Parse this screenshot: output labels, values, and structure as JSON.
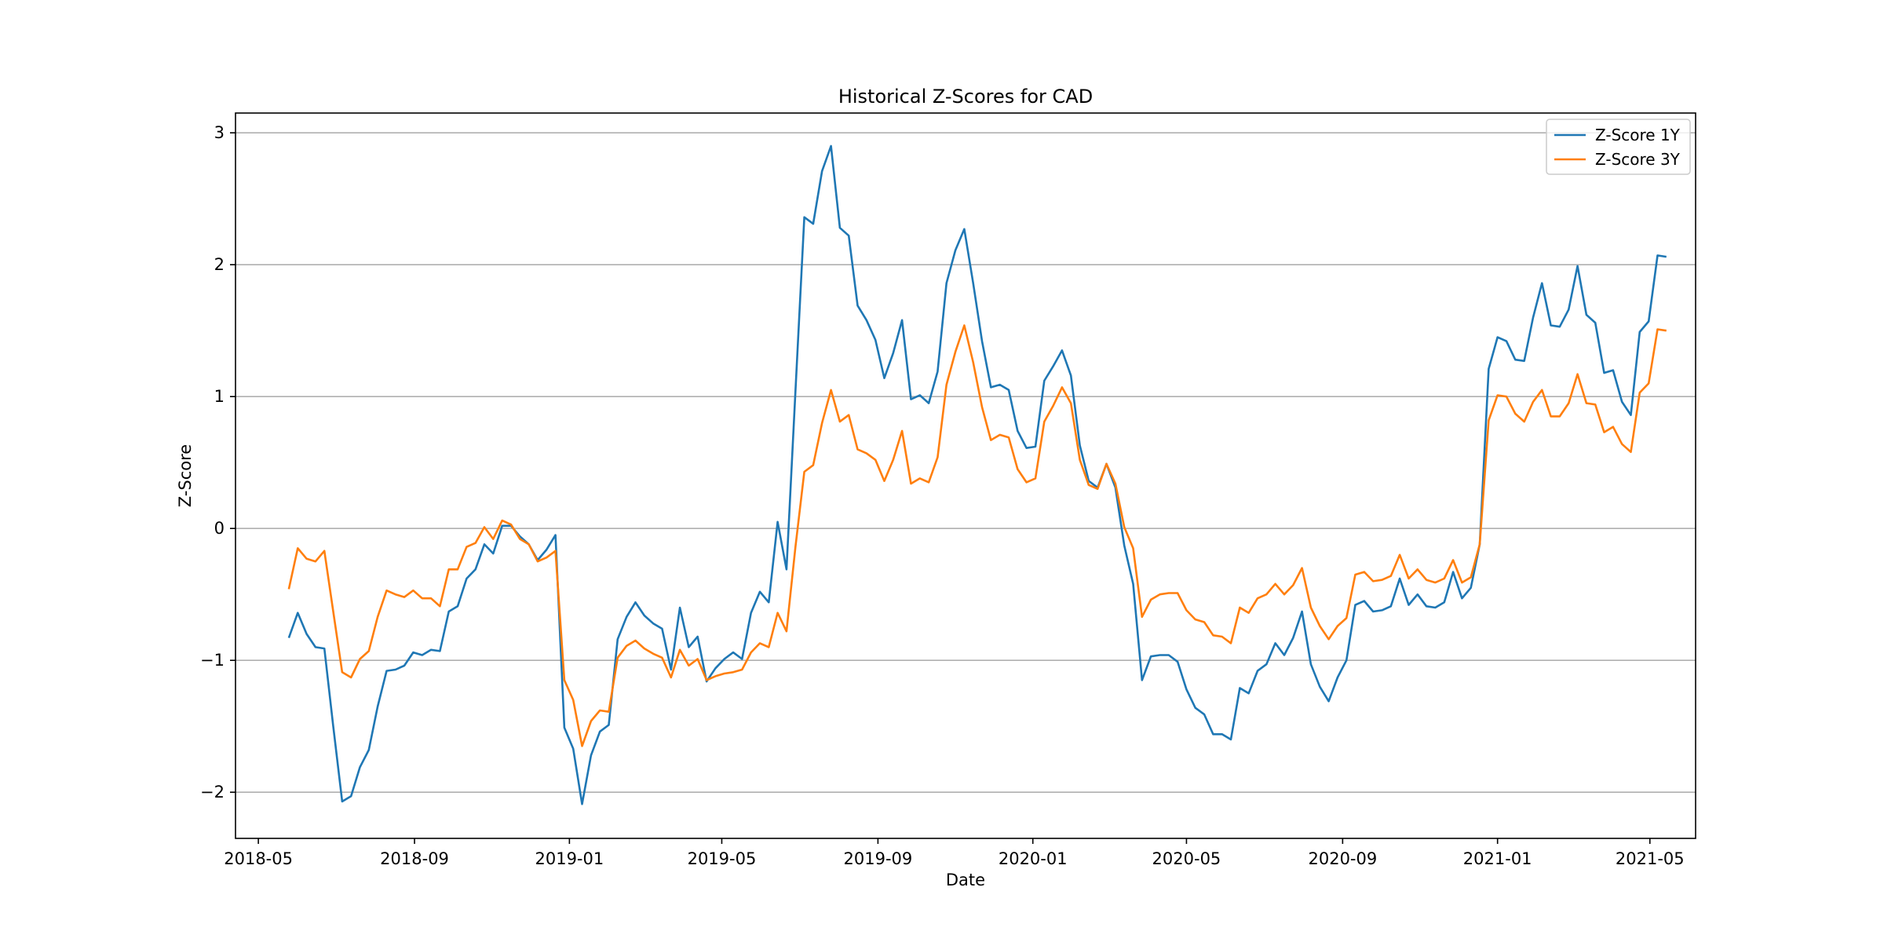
{
  "chart_data": {
    "type": "line",
    "title": "Historical Z-Scores for CAD",
    "xlabel": "Date",
    "ylabel": "Z-Score",
    "ylim": [
      -2.35,
      3.15
    ],
    "xlim": [
      "2018-04-13",
      "2021-06-06"
    ],
    "grid": "horizontal",
    "legend_position": "top-right",
    "x_ticks": [
      "2018-05",
      "2018-09",
      "2019-01",
      "2019-05",
      "2019-09",
      "2020-01",
      "2020-05",
      "2020-09",
      "2021-01",
      "2021-05"
    ],
    "y_ticks": [
      -2,
      -1,
      0,
      1,
      2,
      3
    ],
    "y_tick_labels": [
      "−2",
      "−1",
      "0",
      "1",
      "2",
      "3"
    ],
    "x": [
      "2018-05-25",
      "2018-06-01",
      "2018-06-08",
      "2018-06-15",
      "2018-06-22",
      "2018-06-29",
      "2018-07-06",
      "2018-07-13",
      "2018-07-20",
      "2018-07-27",
      "2018-08-03",
      "2018-08-10",
      "2018-08-17",
      "2018-08-24",
      "2018-08-31",
      "2018-09-07",
      "2018-09-14",
      "2018-09-21",
      "2018-09-28",
      "2018-10-05",
      "2018-10-12",
      "2018-10-19",
      "2018-10-26",
      "2018-11-02",
      "2018-11-09",
      "2018-11-16",
      "2018-11-23",
      "2018-11-30",
      "2018-12-07",
      "2018-12-14",
      "2018-12-21",
      "2018-12-28",
      "2019-01-04",
      "2019-01-11",
      "2019-01-18",
      "2019-01-25",
      "2019-02-01",
      "2019-02-08",
      "2019-02-15",
      "2019-02-22",
      "2019-03-01",
      "2019-03-08",
      "2019-03-15",
      "2019-03-22",
      "2019-03-29",
      "2019-04-05",
      "2019-04-12",
      "2019-04-19",
      "2019-04-26",
      "2019-05-03",
      "2019-05-10",
      "2019-05-17",
      "2019-05-24",
      "2019-05-31",
      "2019-06-07",
      "2019-06-14",
      "2019-06-21",
      "2019-06-28",
      "2019-07-05",
      "2019-07-12",
      "2019-07-19",
      "2019-07-26",
      "2019-08-02",
      "2019-08-09",
      "2019-08-16",
      "2019-08-23",
      "2019-08-30",
      "2019-09-06",
      "2019-09-13",
      "2019-09-20",
      "2019-09-27",
      "2019-10-04",
      "2019-10-11",
      "2019-10-18",
      "2019-10-25",
      "2019-11-01",
      "2019-11-08",
      "2019-11-15",
      "2019-11-22",
      "2019-11-29",
      "2019-12-06",
      "2019-12-13",
      "2019-12-20",
      "2019-12-27",
      "2020-01-03",
      "2020-01-10",
      "2020-01-17",
      "2020-01-24",
      "2020-01-31",
      "2020-02-07",
      "2020-02-14",
      "2020-02-21",
      "2020-02-28",
      "2020-03-06",
      "2020-03-13",
      "2020-03-20",
      "2020-03-27",
      "2020-04-03",
      "2020-04-10",
      "2020-04-17",
      "2020-04-24",
      "2020-05-01",
      "2020-05-08",
      "2020-05-15",
      "2020-05-22",
      "2020-05-29",
      "2020-06-05",
      "2020-06-12",
      "2020-06-19",
      "2020-06-26",
      "2020-07-03",
      "2020-07-10",
      "2020-07-17",
      "2020-07-24",
      "2020-07-31",
      "2020-08-07",
      "2020-08-14",
      "2020-08-21",
      "2020-08-28",
      "2020-09-04",
      "2020-09-11",
      "2020-09-18",
      "2020-09-25",
      "2020-10-02",
      "2020-10-09",
      "2020-10-16",
      "2020-10-23",
      "2020-10-30",
      "2020-11-06",
      "2020-11-13",
      "2020-11-20",
      "2020-11-27",
      "2020-12-04",
      "2020-12-11",
      "2020-12-18",
      "2020-12-25",
      "2021-01-01",
      "2021-01-08",
      "2021-01-15",
      "2021-01-22",
      "2021-01-29",
      "2021-02-05",
      "2021-02-12",
      "2021-02-19",
      "2021-02-26",
      "2021-03-05",
      "2021-03-12",
      "2021-03-19",
      "2021-03-26",
      "2021-04-02",
      "2021-04-09",
      "2021-04-16",
      "2021-04-23",
      "2021-04-30",
      "2021-05-07",
      "2021-05-14"
    ],
    "series": [
      {
        "name": "Z-Score 1Y",
        "color": "#1f77b4",
        "values": [
          -0.83,
          -0.64,
          -0.8,
          -0.9,
          -0.91,
          -1.5,
          -2.07,
          -2.03,
          -1.81,
          -1.68,
          -1.35,
          -1.08,
          -1.07,
          -1.04,
          -0.94,
          -0.96,
          -0.92,
          -0.93,
          -0.63,
          -0.59,
          -0.38,
          -0.31,
          -0.12,
          -0.19,
          0.02,
          0.02,
          -0.06,
          -0.12,
          -0.24,
          -0.16,
          -0.05,
          -1.51,
          -1.67,
          -2.09,
          -1.72,
          -1.54,
          -1.49,
          -0.84,
          -0.67,
          -0.56,
          -0.66,
          -0.72,
          -0.76,
          -1.07,
          -0.6,
          -0.9,
          -0.82,
          -1.16,
          -1.06,
          -0.99,
          -0.94,
          -0.99,
          -0.64,
          -0.48,
          -0.56,
          0.05,
          -0.31,
          1.04,
          2.36,
          2.31,
          2.71,
          2.9,
          2.28,
          2.22,
          1.69,
          1.58,
          1.43,
          1.14,
          1.33,
          1.58,
          0.98,
          1.01,
          0.95,
          1.19,
          1.86,
          2.11,
          2.27,
          1.86,
          1.42,
          1.07,
          1.09,
          1.05,
          0.74,
          0.61,
          0.62,
          1.12,
          1.23,
          1.35,
          1.16,
          0.63,
          0.36,
          0.31,
          0.49,
          0.31,
          -0.13,
          -0.42,
          -1.15,
          -0.97,
          -0.96,
          -0.96,
          -1.01,
          -1.22,
          -1.36,
          -1.41,
          -1.56,
          -1.56,
          -1.6,
          -1.21,
          -1.25,
          -1.08,
          -1.03,
          -0.87,
          -0.96,
          -0.83,
          -0.63,
          -1.03,
          -1.2,
          -1.31,
          -1.13,
          -1.0,
          -0.58,
          -0.55,
          -0.63,
          -0.62,
          -0.59,
          -0.38,
          -0.58,
          -0.5,
          -0.59,
          -0.6,
          -0.56,
          -0.33,
          -0.53,
          -0.45,
          -0.12,
          1.21,
          1.45,
          1.42,
          1.28,
          1.27,
          1.6,
          1.86,
          1.54,
          1.53,
          1.66,
          1.99,
          1.62,
          1.56,
          1.18,
          1.2,
          0.96,
          0.86,
          1.49,
          1.57,
          2.07,
          2.06
        ]
      },
      {
        "name": "Z-Score 3Y",
        "color": "#ff7f0e",
        "values": [
          -0.46,
          -0.15,
          -0.23,
          -0.25,
          -0.17,
          -0.63,
          -1.09,
          -1.13,
          -0.99,
          -0.93,
          -0.67,
          -0.47,
          -0.5,
          -0.52,
          -0.47,
          -0.53,
          -0.53,
          -0.59,
          -0.31,
          -0.31,
          -0.14,
          -0.11,
          0.01,
          -0.08,
          0.06,
          0.03,
          -0.08,
          -0.12,
          -0.25,
          -0.22,
          -0.17,
          -1.15,
          -1.3,
          -1.65,
          -1.46,
          -1.38,
          -1.39,
          -0.98,
          -0.89,
          -0.85,
          -0.91,
          -0.95,
          -0.98,
          -1.13,
          -0.92,
          -1.04,
          -0.99,
          -1.15,
          -1.12,
          -1.1,
          -1.09,
          -1.07,
          -0.94,
          -0.87,
          -0.9,
          -0.64,
          -0.78,
          -0.14,
          0.43,
          0.48,
          0.8,
          1.05,
          0.81,
          0.86,
          0.6,
          0.57,
          0.52,
          0.36,
          0.52,
          0.74,
          0.34,
          0.38,
          0.35,
          0.54,
          1.09,
          1.34,
          1.54,
          1.26,
          0.92,
          0.67,
          0.71,
          0.69,
          0.45,
          0.35,
          0.38,
          0.81,
          0.93,
          1.07,
          0.95,
          0.52,
          0.33,
          0.3,
          0.49,
          0.34,
          0.01,
          -0.15,
          -0.67,
          -0.54,
          -0.5,
          -0.49,
          -0.49,
          -0.62,
          -0.69,
          -0.71,
          -0.81,
          -0.82,
          -0.87,
          -0.6,
          -0.64,
          -0.53,
          -0.5,
          -0.42,
          -0.5,
          -0.43,
          -0.3,
          -0.6,
          -0.74,
          -0.84,
          -0.74,
          -0.68,
          -0.35,
          -0.33,
          -0.4,
          -0.39,
          -0.36,
          -0.2,
          -0.38,
          -0.31,
          -0.39,
          -0.41,
          -0.38,
          -0.24,
          -0.41,
          -0.37,
          -0.12,
          0.82,
          1.01,
          1.0,
          0.87,
          0.81,
          0.96,
          1.05,
          0.85,
          0.85,
          0.95,
          1.17,
          0.95,
          0.94,
          0.73,
          0.77,
          0.64,
          0.58,
          1.03,
          1.1,
          1.51,
          1.5
        ]
      }
    ]
  }
}
